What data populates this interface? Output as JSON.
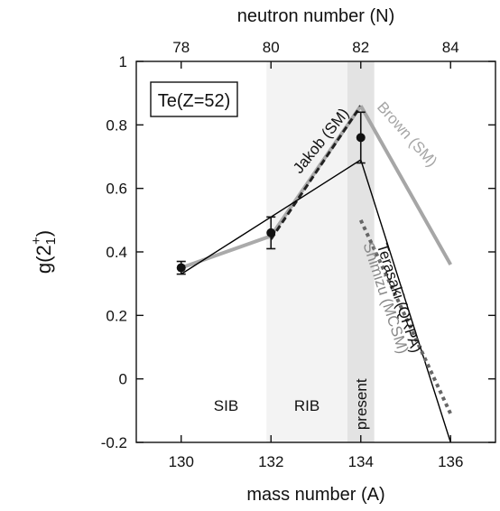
{
  "chart_data": {
    "type": "line",
    "title": "",
    "xlabel": "mass number (A)",
    "ylabel_main": "g(2",
    "ylabel_sup": "+",
    "ylabel_sub": "1",
    "ylabel_close": ")",
    "x2label": "neutron number (N)",
    "xlim": [
      129,
      137
    ],
    "ylim": [
      -0.2,
      1.0
    ],
    "x_ticks": [
      130,
      132,
      134,
      136
    ],
    "y_ticks": [
      -0.2,
      0,
      0.2,
      0.4,
      0.6,
      0.8,
      1
    ],
    "y_tick_labels": [
      "-0.2",
      "0",
      "0.2",
      "0.4",
      "0.6",
      "0.8",
      "1"
    ],
    "x2_ticks": [
      78,
      80,
      82,
      84
    ],
    "x2_tick_labels": [
      "78",
      "80",
      "82",
      "84"
    ],
    "grid": false,
    "box_label": "Te(Z=52)",
    "regions": [
      {
        "label": "SIB",
        "x_range": [
          129,
          131.9
        ]
      },
      {
        "label": "RIB",
        "x_range": [
          131.9,
          133.7
        ]
      },
      {
        "label": "present",
        "x_range": [
          133.7,
          134.3
        ]
      }
    ],
    "measurements": {
      "x": [
        130,
        132,
        134
      ],
      "y": [
        0.35,
        0.46,
        0.76
      ],
      "yerr": [
        0.02,
        0.05,
        0.08
      ]
    },
    "series": [
      {
        "name": "Jakob (SM)",
        "x": [
          130,
          132,
          134
        ],
        "y": [
          0.35,
          0.45,
          0.86
        ],
        "color": "#aaaaaa",
        "style": "solid-thick"
      },
      {
        "name": "Jakob (SM)",
        "x": [
          132,
          134
        ],
        "y": [
          0.44,
          0.86
        ],
        "color": "#222222",
        "style": "dashed"
      },
      {
        "name": "Brown (SM)",
        "x": [
          134,
          136
        ],
        "y": [
          0.86,
          0.36
        ],
        "color": "#a6a6a6",
        "style": "solid-thick"
      },
      {
        "name": "Terasaki (QRPA)",
        "x": [
          130,
          134,
          136
        ],
        "y": [
          0.33,
          0.69,
          -0.2
        ],
        "color": "#000000",
        "style": "solid-thin"
      },
      {
        "name": "Shimizu (MCSM)",
        "x": [
          134,
          136
        ],
        "y": [
          0.5,
          -0.11
        ],
        "color": "#666666",
        "style": "dotted"
      }
    ],
    "colors": {
      "region_light": "#f3f3f3",
      "region_dark": "#e3e3e3",
      "axis": "#111111"
    }
  }
}
